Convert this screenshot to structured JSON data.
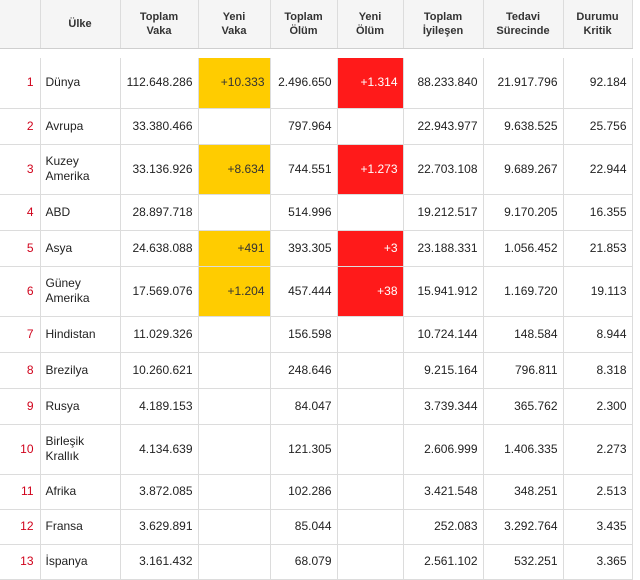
{
  "table": {
    "headers": [
      "",
      "Ülke",
      "Toplam\nVaka",
      "Yeni\nVaka",
      "Toplam\nÖlüm",
      "Yeni\nÖlüm",
      "Toplam\nİyileşen",
      "Tedavi\nSürecinde",
      "Durumu\nKritik"
    ],
    "rows": [
      [
        "1",
        "Dünya",
        "112.648.286",
        "+10.333",
        "2.496.650",
        "+1.314",
        "88.233.840",
        "21.917.796",
        "92.184"
      ],
      [
        "2",
        "Avrupa",
        "33.380.466",
        "",
        "797.964",
        "",
        "22.943.977",
        "9.638.525",
        "25.756"
      ],
      [
        "3",
        "Kuzey\nAmerika",
        "33.136.926",
        "+8.634",
        "744.551",
        "+1.273",
        "22.703.108",
        "9.689.267",
        "22.944"
      ],
      [
        "4",
        "ABD",
        "28.897.718",
        "",
        "514.996",
        "",
        "19.212.517",
        "9.170.205",
        "16.355"
      ],
      [
        "5",
        "Asya",
        "24.638.088",
        "+491",
        "393.305",
        "+3",
        "23.188.331",
        "1.056.452",
        "21.853"
      ],
      [
        "6",
        "Güney\nAmerika",
        "17.569.076",
        "+1.204",
        "457.444",
        "+38",
        "15.941.912",
        "1.169.720",
        "19.113"
      ],
      [
        "7",
        "Hindistan",
        "11.029.326",
        "",
        "156.598",
        "",
        "10.724.144",
        "148.584",
        "8.944"
      ],
      [
        "8",
        "Brezilya",
        "10.260.621",
        "",
        "248.646",
        "",
        "9.215.164",
        "796.811",
        "8.318"
      ],
      [
        "9",
        "Rusya",
        "4.189.153",
        "",
        "84.047",
        "",
        "3.739.344",
        "365.762",
        "2.300"
      ],
      [
        "10",
        "Birleşik\nKrallık",
        "4.134.639",
        "",
        "121.305",
        "",
        "2.606.999",
        "1.406.335",
        "2.273"
      ],
      [
        "11",
        "Afrika",
        "3.872.085",
        "",
        "102.286",
        "",
        "3.421.548",
        "348.251",
        "2.513"
      ],
      [
        "12",
        "Fransa",
        "3.629.891",
        "",
        "85.044",
        "",
        "252.083",
        "3.292.764",
        "3.435"
      ],
      [
        "13",
        "İspanya",
        "3.161.432",
        "",
        "68.079",
        "",
        "2.561.102",
        "532.251",
        "3.365"
      ]
    ]
  },
  "colors": {
    "new_cases_highlight": "#ffcc00",
    "new_deaths_highlight": "#ff1a1a",
    "rank_text": "#d0021b"
  }
}
